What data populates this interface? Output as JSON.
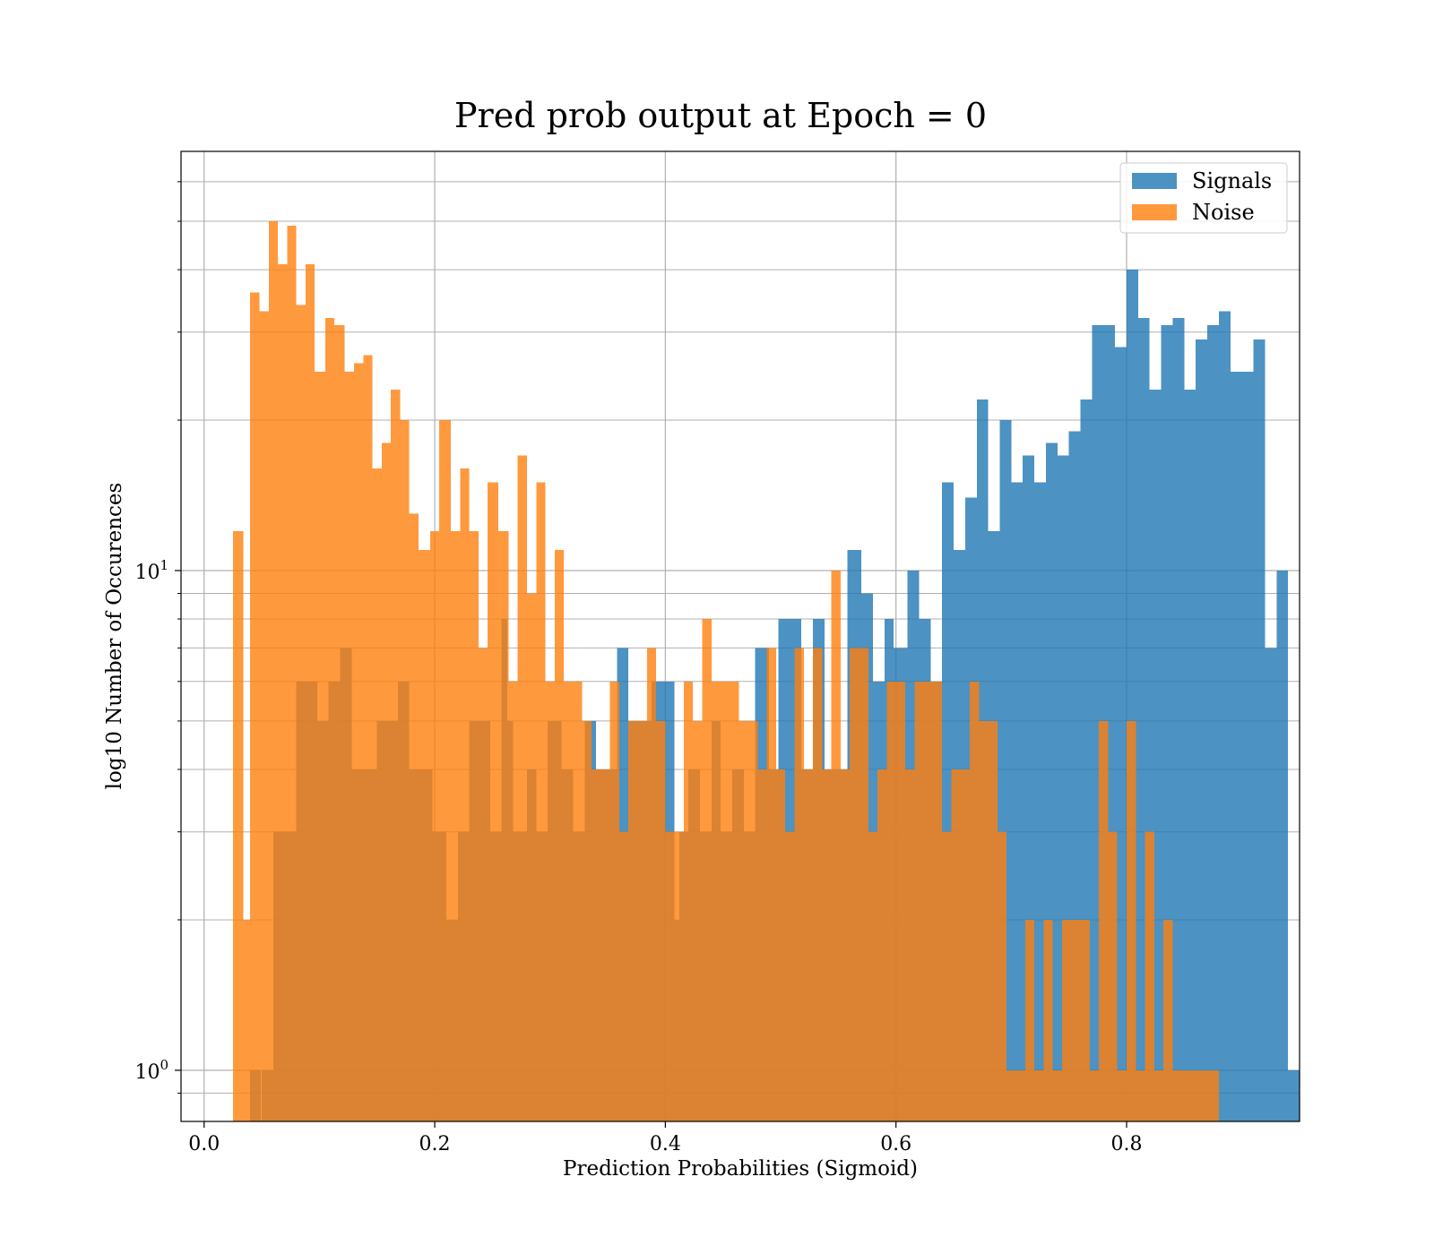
{
  "chart_data": {
    "type": "histogram",
    "title": "Pred prob output at Epoch = 0",
    "xlabel": "Prediction Probabilities (Sigmoid)",
    "ylabel": "log10 Number of Occurences",
    "x_scale": "linear",
    "y_scale": "log",
    "xlim": [
      -0.02,
      0.95
    ],
    "ylim": [
      0.79,
      69
    ],
    "x_ticks": [
      {
        "value": 0.0,
        "label": "0.0"
      },
      {
        "value": 0.2,
        "label": "0.2"
      },
      {
        "value": 0.4,
        "label": "0.4"
      },
      {
        "value": 0.6,
        "label": "0.6"
      },
      {
        "value": 0.8,
        "label": "0.8"
      }
    ],
    "y_major_ticks": [
      {
        "value": 1,
        "base": "10",
        "exp": "0"
      },
      {
        "value": 10,
        "base": "10",
        "exp": "1"
      }
    ],
    "y_minor_ticks": [
      0.9,
      2,
      3,
      4,
      5,
      6,
      7,
      8,
      9,
      20,
      30,
      40,
      50,
      60
    ],
    "grid": true,
    "legend_position": "top-right",
    "series": [
      {
        "name": "Signals",
        "color": "#1f77b4",
        "alpha": 0.8,
        "bins": [
          [
            0.04,
            0.049,
            1
          ],
          [
            0.05,
            0.06,
            1
          ],
          [
            0.06,
            0.066,
            3
          ],
          [
            0.066,
            0.08,
            3
          ],
          [
            0.08,
            0.098,
            6
          ],
          [
            0.098,
            0.108,
            5
          ],
          [
            0.108,
            0.118,
            6
          ],
          [
            0.118,
            0.128,
            7
          ],
          [
            0.128,
            0.138,
            4
          ],
          [
            0.138,
            0.15,
            4
          ],
          [
            0.15,
            0.168,
            5
          ],
          [
            0.168,
            0.178,
            6
          ],
          [
            0.178,
            0.198,
            4
          ],
          [
            0.198,
            0.21,
            3
          ],
          [
            0.21,
            0.22,
            2
          ],
          [
            0.22,
            0.23,
            3
          ],
          [
            0.23,
            0.248,
            5
          ],
          [
            0.248,
            0.258,
            3
          ],
          [
            0.258,
            0.263,
            8
          ],
          [
            0.263,
            0.268,
            5
          ],
          [
            0.268,
            0.28,
            3
          ],
          [
            0.28,
            0.288,
            4
          ],
          [
            0.288,
            0.298,
            3
          ],
          [
            0.298,
            0.31,
            5
          ],
          [
            0.31,
            0.32,
            4
          ],
          [
            0.32,
            0.33,
            3
          ],
          [
            0.33,
            0.34,
            5
          ],
          [
            0.34,
            0.358,
            4
          ],
          [
            0.358,
            0.368,
            7
          ],
          [
            0.368,
            0.38,
            5
          ],
          [
            0.38,
            0.388,
            5
          ],
          [
            0.388,
            0.4,
            6
          ],
          [
            0.4,
            0.408,
            6
          ],
          [
            0.408,
            0.412,
            2
          ],
          [
            0.412,
            0.42,
            3
          ],
          [
            0.42,
            0.43,
            4
          ],
          [
            0.43,
            0.44,
            3
          ],
          [
            0.44,
            0.448,
            5
          ],
          [
            0.448,
            0.458,
            3
          ],
          [
            0.458,
            0.468,
            4
          ],
          [
            0.468,
            0.478,
            3
          ],
          [
            0.478,
            0.49,
            7
          ],
          [
            0.49,
            0.498,
            4
          ],
          [
            0.498,
            0.508,
            8
          ],
          [
            0.508,
            0.518,
            8
          ],
          [
            0.518,
            0.528,
            4
          ],
          [
            0.528,
            0.538,
            8
          ],
          [
            0.538,
            0.55,
            4
          ],
          [
            0.55,
            0.558,
            4
          ],
          [
            0.558,
            0.57,
            11
          ],
          [
            0.57,
            0.58,
            9
          ],
          [
            0.58,
            0.59,
            6
          ],
          [
            0.59,
            0.598,
            8
          ],
          [
            0.598,
            0.61,
            7
          ],
          [
            0.61,
            0.62,
            10
          ],
          [
            0.62,
            0.63,
            8
          ],
          [
            0.63,
            0.64,
            6
          ],
          [
            0.64,
            0.65,
            15
          ],
          [
            0.65,
            0.66,
            11
          ],
          [
            0.66,
            0.67,
            14
          ],
          [
            0.67,
            0.68,
            22
          ],
          [
            0.68,
            0.69,
            12
          ],
          [
            0.69,
            0.7,
            20
          ],
          [
            0.7,
            0.71,
            15
          ],
          [
            0.71,
            0.72,
            17
          ],
          [
            0.72,
            0.73,
            15
          ],
          [
            0.73,
            0.74,
            18
          ],
          [
            0.74,
            0.75,
            17
          ],
          [
            0.75,
            0.76,
            19
          ],
          [
            0.76,
            0.77,
            22
          ],
          [
            0.77,
            0.78,
            31
          ],
          [
            0.78,
            0.79,
            31
          ],
          [
            0.79,
            0.8,
            28
          ],
          [
            0.8,
            0.81,
            40
          ],
          [
            0.81,
            0.82,
            32
          ],
          [
            0.82,
            0.83,
            23
          ],
          [
            0.83,
            0.84,
            31
          ],
          [
            0.84,
            0.85,
            32
          ],
          [
            0.85,
            0.86,
            23
          ],
          [
            0.86,
            0.87,
            29
          ],
          [
            0.87,
            0.88,
            31
          ],
          [
            0.88,
            0.89,
            33
          ],
          [
            0.89,
            0.9,
            25
          ],
          [
            0.9,
            0.91,
            25
          ],
          [
            0.91,
            0.92,
            29
          ],
          [
            0.92,
            0.93,
            7
          ],
          [
            0.93,
            0.94,
            10
          ],
          [
            0.94,
            0.95,
            1
          ]
        ]
      },
      {
        "name": "Noise",
        "color": "#ff7f0e",
        "alpha": 0.8,
        "bins": [
          [
            0.025,
            0.034,
            12
          ],
          [
            0.034,
            0.04,
            2
          ],
          [
            0.04,
            0.048,
            36
          ],
          [
            0.048,
            0.056,
            33
          ],
          [
            0.056,
            0.064,
            50
          ],
          [
            0.064,
            0.072,
            41
          ],
          [
            0.072,
            0.08,
            49
          ],
          [
            0.08,
            0.088,
            34
          ],
          [
            0.088,
            0.096,
            41
          ],
          [
            0.096,
            0.105,
            25
          ],
          [
            0.105,
            0.113,
            32
          ],
          [
            0.113,
            0.122,
            31
          ],
          [
            0.122,
            0.13,
            25
          ],
          [
            0.13,
            0.138,
            26
          ],
          [
            0.138,
            0.146,
            27
          ],
          [
            0.146,
            0.154,
            16
          ],
          [
            0.154,
            0.162,
            18
          ],
          [
            0.162,
            0.17,
            23
          ],
          [
            0.17,
            0.178,
            20
          ],
          [
            0.178,
            0.186,
            13
          ],
          [
            0.186,
            0.196,
            11
          ],
          [
            0.196,
            0.204,
            12
          ],
          [
            0.204,
            0.214,
            20
          ],
          [
            0.214,
            0.222,
            12
          ],
          [
            0.222,
            0.23,
            16
          ],
          [
            0.23,
            0.238,
            12
          ],
          [
            0.238,
            0.246,
            7
          ],
          [
            0.246,
            0.255,
            15
          ],
          [
            0.255,
            0.264,
            12
          ],
          [
            0.264,
            0.272,
            6
          ],
          [
            0.272,
            0.28,
            17
          ],
          [
            0.28,
            0.288,
            9
          ],
          [
            0.288,
            0.296,
            15
          ],
          [
            0.296,
            0.304,
            6
          ],
          [
            0.304,
            0.312,
            11
          ],
          [
            0.312,
            0.32,
            6
          ],
          [
            0.32,
            0.328,
            6
          ],
          [
            0.328,
            0.336,
            5
          ],
          [
            0.336,
            0.344,
            4
          ],
          [
            0.344,
            0.352,
            4
          ],
          [
            0.352,
            0.36,
            6
          ],
          [
            0.36,
            0.368,
            3
          ],
          [
            0.368,
            0.376,
            5
          ],
          [
            0.376,
            0.384,
            5
          ],
          [
            0.384,
            0.392,
            7
          ],
          [
            0.392,
            0.4,
            5
          ],
          [
            0.4,
            0.408,
            3
          ],
          [
            0.408,
            0.416,
            3
          ],
          [
            0.416,
            0.424,
            6
          ],
          [
            0.424,
            0.432,
            5
          ],
          [
            0.432,
            0.44,
            8
          ],
          [
            0.44,
            0.448,
            6
          ],
          [
            0.448,
            0.456,
            6
          ],
          [
            0.456,
            0.464,
            6
          ],
          [
            0.464,
            0.472,
            5
          ],
          [
            0.472,
            0.48,
            5
          ],
          [
            0.48,
            0.488,
            4
          ],
          [
            0.488,
            0.496,
            7
          ],
          [
            0.496,
            0.504,
            4
          ],
          [
            0.504,
            0.512,
            3
          ],
          [
            0.512,
            0.52,
            7
          ],
          [
            0.52,
            0.528,
            4
          ],
          [
            0.528,
            0.536,
            7
          ],
          [
            0.536,
            0.544,
            4
          ],
          [
            0.544,
            0.552,
            10
          ],
          [
            0.552,
            0.56,
            4
          ],
          [
            0.56,
            0.568,
            7
          ],
          [
            0.568,
            0.576,
            7
          ],
          [
            0.576,
            0.584,
            3
          ],
          [
            0.584,
            0.592,
            4
          ],
          [
            0.592,
            0.6,
            6
          ],
          [
            0.6,
            0.608,
            6
          ],
          [
            0.608,
            0.616,
            4
          ],
          [
            0.616,
            0.624,
            6
          ],
          [
            0.624,
            0.632,
            6
          ],
          [
            0.632,
            0.64,
            6
          ],
          [
            0.64,
            0.648,
            3
          ],
          [
            0.648,
            0.656,
            4
          ],
          [
            0.656,
            0.664,
            4
          ],
          [
            0.664,
            0.672,
            6
          ],
          [
            0.672,
            0.68,
            5
          ],
          [
            0.68,
            0.688,
            5
          ],
          [
            0.688,
            0.696,
            3
          ],
          [
            0.696,
            0.704,
            1
          ],
          [
            0.704,
            0.712,
            1
          ],
          [
            0.712,
            0.72,
            2
          ],
          [
            0.72,
            0.728,
            1
          ],
          [
            0.728,
            0.736,
            2
          ],
          [
            0.736,
            0.744,
            1
          ],
          [
            0.744,
            0.752,
            2
          ],
          [
            0.752,
            0.76,
            2
          ],
          [
            0.76,
            0.768,
            2
          ],
          [
            0.768,
            0.776,
            1
          ],
          [
            0.776,
            0.784,
            5
          ],
          [
            0.784,
            0.792,
            3
          ],
          [
            0.792,
            0.8,
            1
          ],
          [
            0.8,
            0.808,
            5
          ],
          [
            0.808,
            0.816,
            1
          ],
          [
            0.816,
            0.824,
            3
          ],
          [
            0.824,
            0.832,
            1
          ],
          [
            0.832,
            0.84,
            2
          ],
          [
            0.84,
            0.848,
            1
          ],
          [
            0.848,
            0.856,
            1
          ],
          [
            0.856,
            0.864,
            1
          ],
          [
            0.864,
            0.872,
            1
          ],
          [
            0.872,
            0.88,
            1
          ]
        ]
      }
    ]
  }
}
